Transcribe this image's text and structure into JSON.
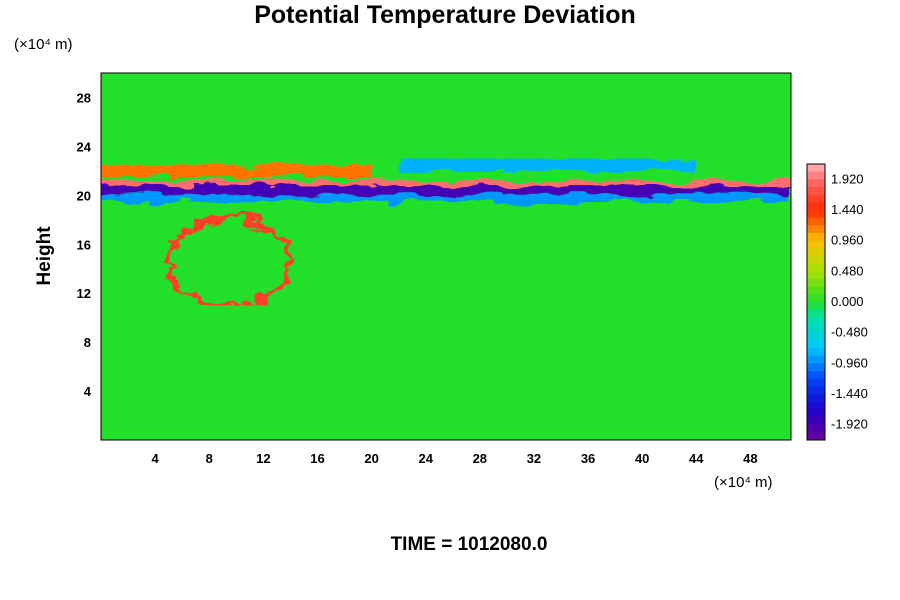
{
  "chart_data": {
    "type": "heatmap",
    "title": "Potential Temperature Deviation",
    "ylabel": "Height",
    "xlabel": "",
    "x_unit_text": "(×10⁴ m)",
    "y_unit_text": "(×10⁴ m)",
    "xlim": [
      0,
      51
    ],
    "ylim": [
      0,
      30
    ],
    "x_ticks": [
      4,
      8,
      12,
      16,
      20,
      24,
      28,
      32,
      36,
      40,
      44,
      48
    ],
    "x_tick_labels": [
      "4",
      "8",
      "12",
      "16",
      "20",
      "24",
      "28",
      "32",
      "36",
      "40",
      "44",
      "48"
    ],
    "y_ticks": [
      4,
      8,
      12,
      16,
      20,
      24,
      28
    ],
    "y_tick_labels": [
      "4",
      "8",
      "12",
      "16",
      "20",
      "24",
      "28"
    ],
    "colorbar": {
      "min": -2.16,
      "max": 2.16,
      "tick_values": [
        1.92,
        1.44,
        0.96,
        0.48,
        0.0,
        -0.48,
        -0.96,
        -1.44,
        -1.92
      ],
      "tick_labels": [
        "1.920",
        "1.440",
        "0.960",
        "0.480",
        "0.000",
        "-0.480",
        "-0.960",
        "-1.440",
        "-1.920"
      ]
    },
    "background_value": 0.0,
    "features": [
      {
        "name": "upper-band",
        "value": 1.92,
        "x_range": [
          0,
          51
        ],
        "y_range": [
          20.4,
          21.2
        ]
      },
      {
        "name": "lower-band",
        "value": -1.92,
        "x_range": [
          0,
          51
        ],
        "y_range": [
          20.0,
          20.8
        ]
      },
      {
        "name": "upper-edge",
        "value": 1.2,
        "x_range": [
          0,
          20
        ],
        "y_range": [
          21.5,
          22.5
        ]
      },
      {
        "name": "lower-edge",
        "value": -0.9,
        "x_range": [
          0,
          51
        ],
        "y_range": [
          19.5,
          20.0
        ]
      },
      {
        "name": "warm-blob",
        "value": 1.6,
        "x_range": [
          5,
          14
        ],
        "y_range": [
          11,
          18
        ]
      },
      {
        "name": "cool-wake",
        "value": -0.8,
        "x_range": [
          22,
          44
        ],
        "y_range": [
          22,
          23
        ]
      }
    ],
    "grid": false,
    "legend": "colorbar-right"
  },
  "caption": "TIME = 1012080.0"
}
